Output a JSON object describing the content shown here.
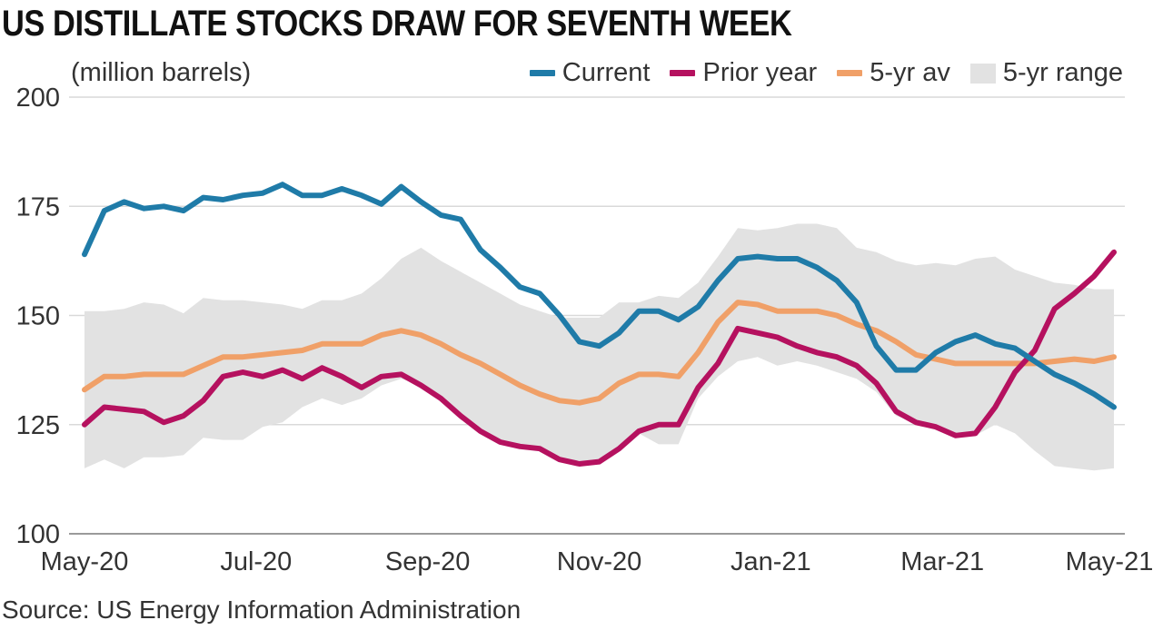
{
  "header": {
    "title": "US DISTILLATE STOCKS DRAW FOR SEVENTH WEEK",
    "unit": "(million barrels)"
  },
  "footer": {
    "source": "Source: US Energy Information Administration"
  },
  "legend": {
    "current": "Current",
    "prior": "Prior year",
    "avg": "5-yr av",
    "range": "5-yr range"
  },
  "colors": {
    "current": "#1f7ba8",
    "prior": "#b5115f",
    "avg": "#f0a068",
    "range": "#e2e2e2",
    "grid": "#d9d9d9"
  },
  "chart_data": {
    "type": "line",
    "ylim": [
      100,
      200
    ],
    "yticks": [
      "200",
      "175",
      "150",
      "125",
      "100"
    ],
    "x_tick_labels": [
      "May-20",
      "Jul-20",
      "Sep-20",
      "Nov-20",
      "Jan-21",
      "Mar-21",
      "May-21"
    ],
    "legend_position": "top-right",
    "grid": "horizontal",
    "series": [
      {
        "name": "Current",
        "key": "current",
        "values": [
          164,
          174,
          176,
          174.5,
          175,
          174,
          177,
          176.5,
          177.5,
          178,
          180,
          177.5,
          177.5,
          179,
          177.5,
          175.5,
          179.5,
          176,
          173,
          172,
          165,
          161,
          156.5,
          155,
          150,
          144,
          143,
          146,
          151,
          151,
          149,
          152,
          158,
          163,
          163.5,
          163,
          163,
          161,
          158,
          153,
          143,
          137.5,
          137.5,
          141.5,
          144,
          145.5,
          143.5,
          142.5,
          139.5,
          136.5,
          134.5,
          132,
          129
        ]
      },
      {
        "name": "Prior year",
        "key": "prior",
        "values": [
          125,
          129,
          128.5,
          128,
          125.5,
          127,
          130.5,
          136,
          137,
          136,
          137.5,
          135.5,
          138,
          136,
          133.5,
          136,
          136.5,
          134,
          131,
          127,
          123.5,
          121,
          120,
          119.5,
          117,
          116,
          116.5,
          119.5,
          123.5,
          125,
          125,
          133.5,
          139,
          147,
          146,
          145,
          143,
          141.5,
          140.5,
          138.5,
          134.5,
          128,
          125.5,
          124.5,
          122.5,
          123,
          129,
          137,
          142,
          151.5,
          155,
          159,
          164.5
        ]
      },
      {
        "name": "5-yr av",
        "key": "avg",
        "values": [
          133,
          136,
          136,
          136.5,
          136.5,
          136.5,
          138.5,
          140.5,
          140.5,
          141,
          141.5,
          142,
          143.5,
          143.5,
          143.5,
          145.5,
          146.5,
          145.5,
          143.5,
          141,
          139,
          136.5,
          134,
          132,
          130.5,
          130,
          131,
          134.5,
          136.5,
          136.5,
          136,
          141.5,
          148.5,
          153,
          152.5,
          151,
          151,
          151,
          150,
          148,
          146.5,
          144,
          141,
          140,
          139,
          139,
          139,
          139,
          139,
          139.5,
          140,
          139.5,
          140.5
        ]
      },
      {
        "name": "5-yr range",
        "key": "range",
        "low": [
          115,
          117,
          115,
          117.5,
          117.5,
          118,
          122,
          121.5,
          121.5,
          124.5,
          125.5,
          129,
          131,
          129.5,
          131,
          134,
          135.5,
          134,
          131,
          127,
          123.5,
          121,
          120,
          119.5,
          117,
          116,
          116.5,
          119.5,
          123,
          120.5,
          120.5,
          131,
          136,
          139.5,
          140.5,
          138.5,
          139.5,
          138.5,
          137,
          135.5,
          132.5,
          127,
          125.5,
          124.5,
          122.5,
          122.5,
          125,
          123,
          119,
          115.5,
          115,
          114.5,
          115
        ],
        "high": [
          151,
          151,
          151.5,
          153,
          152.5,
          150.5,
          154,
          153.5,
          153.5,
          153,
          152.5,
          151.5,
          153.5,
          153.5,
          155,
          158.5,
          163,
          165.5,
          162.5,
          160,
          157.5,
          155,
          152.5,
          151,
          149.5,
          149.5,
          149.5,
          153,
          153,
          154.5,
          154,
          157.5,
          163.5,
          170,
          169.5,
          170,
          171,
          171,
          170,
          165.5,
          164.5,
          162.5,
          161.5,
          162,
          161.5,
          163,
          163.5,
          160.5,
          159,
          157.5,
          157,
          156,
          156
        ]
      }
    ]
  }
}
